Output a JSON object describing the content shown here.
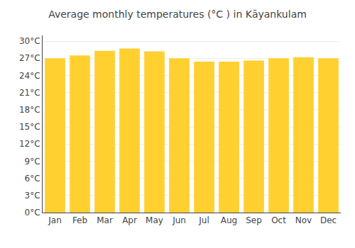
{
  "chart_data": {
    "type": "bar",
    "title": "Average monthly temperatures (°C ) in Kāyankulam",
    "categories": [
      "Jan",
      "Feb",
      "Mar",
      "Apr",
      "May",
      "Jun",
      "Jul",
      "Aug",
      "Sep",
      "Oct",
      "Nov",
      "Dec"
    ],
    "values": [
      27.0,
      27.5,
      28.3,
      28.7,
      28.2,
      27.0,
      26.4,
      26.4,
      26.6,
      27.0,
      27.2,
      27.0
    ],
    "color": "#FFD030",
    "ylim": [
      0,
      31
    ],
    "yticks": [
      {
        "value": 0,
        "label": "0°C"
      },
      {
        "value": 3,
        "label": "3°C"
      },
      {
        "value": 6,
        "label": "6°C"
      },
      {
        "value": 9,
        "label": "9°C"
      },
      {
        "value": 12,
        "label": "12°C"
      },
      {
        "value": 15,
        "label": "15°C"
      },
      {
        "value": 18,
        "label": "18°C"
      },
      {
        "value": 21,
        "label": "21°C"
      },
      {
        "value": 24,
        "label": "24°C"
      },
      {
        "value": 27,
        "label": "27°C"
      },
      {
        "value": 30,
        "label": "30°C"
      }
    ],
    "grid": true
  }
}
